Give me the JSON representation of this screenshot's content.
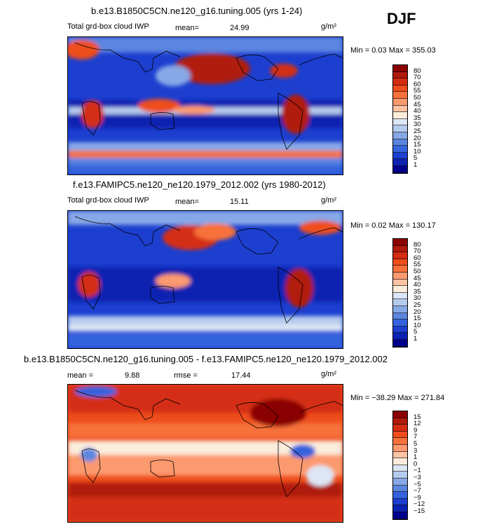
{
  "season": "DJF",
  "panels": [
    {
      "id": "p1",
      "title": "b.e13.B1850C5CN.ne120_g16.tuning.005 (yrs 1-24)",
      "variable": "Total grd-box cloud IWP",
      "mean_label": "mean=",
      "mean_value": "24.99",
      "units": "g/m²",
      "minmax_text": "Min =    0.03  Max = 355.03"
    },
    {
      "id": "p2",
      "title": "f.e13.FAMIPC5.ne120_ne120.1979_2012.002 (yrs 1980-2012)",
      "variable": "Total grd-box cloud IWP",
      "mean_label": "mean=",
      "mean_value": "15.11",
      "units": "g/m²",
      "minmax_text": "Min =    0.02  Max = 130.17"
    },
    {
      "id": "p3",
      "title": "b.e13.B1850C5CN.ne120_g16.tuning.005 - f.e13.FAMIPC5.ne120_ne120.1979_2012.002",
      "mean_label": "mean =",
      "mean_value": "9.88",
      "rmse_label": "rmse =",
      "rmse_value": "17.44",
      "units": "g/m²",
      "minmax_text": "Min = −38.29  Max = 271.84"
    }
  ],
  "colorbars": {
    "abs": {
      "labels": [
        "80",
        "70",
        "60",
        "55",
        "50",
        "45",
        "40",
        "35",
        "30",
        "25",
        "20",
        "15",
        "10",
        "5",
        "1"
      ],
      "colors": [
        "#8b0000",
        "#b01a0c",
        "#d42d12",
        "#ee4d1c",
        "#f7713b",
        "#fb9a6e",
        "#fcc4a5",
        "#fbecdc",
        "#dce6f5",
        "#b5cbee",
        "#87a8e6",
        "#5b86e0",
        "#3563dd",
        "#1c3fd0",
        "#0c22b0",
        "#00008b"
      ]
    },
    "diff": {
      "labels": [
        "15",
        "12",
        "9",
        "7",
        "5",
        "3",
        "1",
        "0",
        "−1",
        "−3",
        "−5",
        "−7",
        "−9",
        "−12",
        "−15"
      ],
      "colors": [
        "#8b0000",
        "#b01a0c",
        "#d42d12",
        "#ee4d1c",
        "#f7713b",
        "#fb9a6e",
        "#fcc4a5",
        "#fbecdc",
        "#dce6f5",
        "#b5cbee",
        "#87a8e6",
        "#5b86e0",
        "#3563dd",
        "#1c3fd0",
        "#0c22b0",
        "#00008b"
      ]
    }
  },
  "chart_data": [
    {
      "type": "heatmap",
      "title": "b.e13.B1850C5CN.ne120_g16.tuning.005 (yrs 1-24)",
      "variable": "Total grd-box cloud IWP",
      "units": "g/m2",
      "mean": 24.99,
      "min": 0.03,
      "max": 355.03,
      "contour_levels": [
        1,
        5,
        10,
        15,
        20,
        25,
        30,
        35,
        40,
        45,
        50,
        55,
        60,
        70,
        80
      ],
      "projection": "global lat-lon, Pacific-centred"
    },
    {
      "type": "heatmap",
      "title": "f.e13.FAMIPC5.ne120_ne120.1979_2012.002 (yrs 1980-2012)",
      "variable": "Total grd-box cloud IWP",
      "units": "g/m2",
      "mean": 15.11,
      "min": 0.02,
      "max": 130.17,
      "contour_levels": [
        1,
        5,
        10,
        15,
        20,
        25,
        30,
        35,
        40,
        45,
        50,
        55,
        60,
        70,
        80
      ],
      "projection": "global lat-lon, Pacific-centred"
    },
    {
      "type": "heatmap",
      "title": "b.e13.B1850C5CN.ne120_g16.tuning.005 - f.e13.FAMIPC5.ne120_ne120.1979_2012.002",
      "units": "g/m2",
      "mean": 9.88,
      "rmse": 17.44,
      "min": -38.29,
      "max": 271.84,
      "contour_levels": [
        -15,
        -12,
        -9,
        -7,
        -5,
        -3,
        -1,
        0,
        1,
        3,
        5,
        7,
        9,
        12,
        15
      ],
      "projection": "global lat-lon, Pacific-centred"
    }
  ]
}
